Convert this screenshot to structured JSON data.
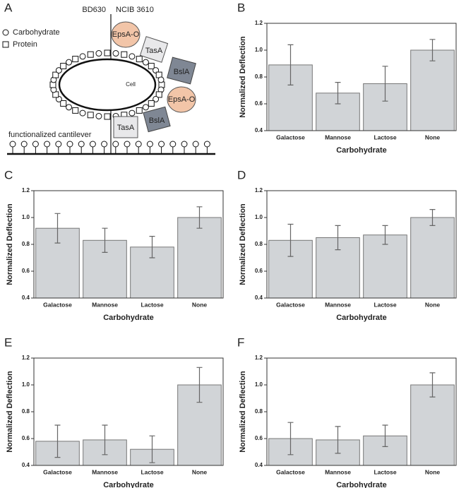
{
  "diagram": {
    "panel": "A",
    "strains": [
      "BD630",
      "NCIB 3610"
    ],
    "legend": [
      "Carbohydrate",
      "Protein"
    ],
    "cell": "Cell",
    "proteins": [
      "EpsA-O",
      "TasA",
      "BslA",
      "EpsA-O",
      "TasA",
      "BslA"
    ],
    "surface": "functionalized cantilever"
  },
  "chart_data": [
    {
      "type": "bar",
      "panel": "B",
      "categories": [
        "Galactose",
        "Mannose",
        "Lactose",
        "None"
      ],
      "values": [
        0.89,
        0.68,
        0.75,
        1.0
      ],
      "errors": [
        0.15,
        0.08,
        0.13,
        0.08
      ],
      "xlabel": "Carbohydrate",
      "ylabel": "Normalized Deflection",
      "ylim": [
        0.4,
        1.2
      ],
      "yticks": [
        0.4,
        0.6,
        0.8,
        {
          "value": 1.0,
          "label": "1.0"
        },
        1.2
      ],
      "color": "#d1d4d7"
    },
    {
      "type": "bar",
      "panel": "C",
      "categories": [
        "Galactose",
        "Mannose",
        "Lactose",
        "None"
      ],
      "values": [
        0.92,
        0.83,
        0.78,
        1.0
      ],
      "errors": [
        0.11,
        0.09,
        0.08,
        0.08
      ],
      "xlabel": "Carbohydrate",
      "ylabel": "Normalized Deflection",
      "ylim": [
        0.4,
        1.2
      ],
      "yticks": [
        0.4,
        0.6,
        0.8,
        {
          "value": 1.0,
          "label": "1.0"
        },
        1.2
      ],
      "color": "#d1d4d7"
    },
    {
      "type": "bar",
      "panel": "D",
      "categories": [
        "Galactose",
        "Mannose",
        "Lactose",
        "None"
      ],
      "values": [
        0.83,
        0.85,
        0.87,
        1.0
      ],
      "errors": [
        0.12,
        0.09,
        0.07,
        0.06
      ],
      "xlabel": "Carbohydrate",
      "ylabel": "Normalized Deflection",
      "ylim": [
        0.4,
        1.2
      ],
      "yticks": [
        0.4,
        0.6,
        0.8,
        {
          "value": 1.0,
          "label": "1.0"
        },
        1.2
      ],
      "color": "#d1d4d7"
    },
    {
      "type": "bar",
      "panel": "E",
      "categories": [
        "Galactose",
        "Mannose",
        "Lactose",
        "None"
      ],
      "values": [
        0.58,
        0.59,
        0.52,
        1.0
      ],
      "errors": [
        0.12,
        0.11,
        0.1,
        0.13
      ],
      "xlabel": "Carbohydrate",
      "ylabel": "Normalized Deflection",
      "ylim": [
        0.4,
        1.2
      ],
      "yticks": [
        0.4,
        0.6,
        0.8,
        {
          "value": 1.0,
          "label": "1.0"
        },
        1.2
      ],
      "color": "#d1d4d7"
    },
    {
      "type": "bar",
      "panel": "F",
      "categories": [
        "Galactose",
        "Mannose",
        "Lactose",
        "None"
      ],
      "values": [
        0.6,
        0.59,
        0.62,
        1.0
      ],
      "errors": [
        0.12,
        0.1,
        0.08,
        0.09
      ],
      "xlabel": "Carbohydrate",
      "ylabel": "Normalized Deflection",
      "ylim": [
        0.4,
        1.2
      ],
      "yticks": [
        0.4,
        0.6,
        0.8,
        {
          "value": 1.0,
          "label": "1.0"
        },
        1.2
      ],
      "color": "#d1d4d7"
    }
  ]
}
